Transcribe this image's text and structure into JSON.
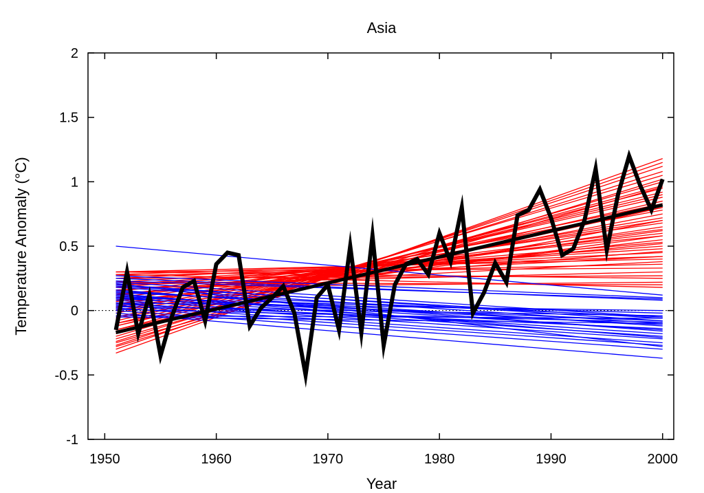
{
  "chart_data": {
    "type": "line",
    "title": "Asia",
    "xlabel": "Year",
    "ylabel": "Temperature Anomaly (°C)",
    "xlim": [
      1948.5,
      2001
    ],
    "ylim": [
      -1,
      2
    ],
    "xticks": [
      1950,
      1960,
      1970,
      1980,
      1990,
      2000
    ],
    "yticks": [
      -1,
      -0.5,
      0,
      0.5,
      1,
      1.5,
      2
    ],
    "ytick_labels": [
      "-1",
      "-0.5",
      "0",
      "0.5",
      "1",
      "1.5",
      "2"
    ],
    "zero_line": {
      "y": 0,
      "style": "dotted",
      "color": "#000000"
    },
    "grid": false,
    "legend": "none",
    "colors": {
      "warming_trends": "#ff0000",
      "cooling_trends": "#0000ff",
      "observed": "#000000"
    },
    "observed": {
      "x": [
        1951,
        1952,
        1953,
        1954,
        1955,
        1956,
        1957,
        1958,
        1959,
        1960,
        1961,
        1962,
        1963,
        1964,
        1965,
        1966,
        1967,
        1968,
        1969,
        1970,
        1971,
        1972,
        1973,
        1974,
        1975,
        1976,
        1977,
        1978,
        1979,
        1980,
        1981,
        1982,
        1983,
        1984,
        1985,
        1986,
        1987,
        1988,
        1989,
        1990,
        1991,
        1992,
        1993,
        1994,
        1995,
        1996,
        1997,
        1998,
        1999,
        2000
      ],
      "values": [
        -0.15,
        0.3,
        -0.18,
        0.12,
        -0.35,
        -0.05,
        0.18,
        0.23,
        -0.08,
        0.36,
        0.45,
        0.43,
        -0.12,
        0.02,
        0.1,
        0.19,
        -0.02,
        -0.5,
        0.1,
        0.2,
        -0.15,
        0.5,
        -0.17,
        0.58,
        -0.27,
        0.2,
        0.36,
        0.4,
        0.28,
        0.6,
        0.38,
        0.8,
        -0.02,
        0.14,
        0.37,
        0.22,
        0.74,
        0.78,
        0.94,
        0.72,
        0.43,
        0.48,
        0.7,
        1.1,
        0.47,
        0.9,
        1.2,
        0.97,
        0.78,
        1.02
      ]
    },
    "observed_trend": {
      "x": [
        1951,
        2000
      ],
      "values": [
        -0.17,
        0.82
      ]
    },
    "warming_trends": [
      [
        -0.33,
        1.18
      ],
      [
        -0.3,
        1.15
      ],
      [
        -0.27,
        1.12
      ],
      [
        -0.24,
        1.08
      ],
      [
        -0.2,
        1.05
      ],
      [
        -0.22,
        1.0
      ],
      [
        -0.18,
        0.97
      ],
      [
        -0.15,
        0.95
      ],
      [
        -0.12,
        0.92
      ],
      [
        -0.1,
        0.9
      ],
      [
        -0.08,
        0.88
      ],
      [
        -0.12,
        0.85
      ],
      [
        -0.05,
        0.83
      ],
      [
        -0.02,
        0.8
      ],
      [
        0.0,
        0.78
      ],
      [
        -0.06,
        0.75
      ],
      [
        0.03,
        0.72
      ],
      [
        0.05,
        0.7
      ],
      [
        0.08,
        0.68
      ],
      [
        0.02,
        0.65
      ],
      [
        0.1,
        0.63
      ],
      [
        0.12,
        0.6
      ],
      [
        0.15,
        0.58
      ],
      [
        0.07,
        0.55
      ],
      [
        0.18,
        0.53
      ],
      [
        0.2,
        0.5
      ],
      [
        0.22,
        0.48
      ],
      [
        0.13,
        0.46
      ],
      [
        0.25,
        0.45
      ],
      [
        0.28,
        0.42
      ],
      [
        0.3,
        0.4
      ],
      [
        0.16,
        0.38
      ],
      [
        0.27,
        0.36
      ],
      [
        0.3,
        0.33
      ],
      [
        0.2,
        0.3
      ],
      [
        0.25,
        0.27
      ],
      [
        0.3,
        0.25
      ],
      [
        0.18,
        0.22
      ],
      [
        0.22,
        0.2
      ],
      [
        0.28,
        0.18
      ],
      [
        -0.25,
        0.96
      ],
      [
        -0.1,
        0.7
      ],
      [
        0.05,
        0.62
      ],
      [
        0.12,
        0.52
      ],
      [
        -0.15,
        0.8
      ],
      [
        0.0,
        0.58
      ],
      [
        0.2,
        0.42
      ],
      [
        -0.28,
        1.02
      ]
    ],
    "cooling_trends": [
      [
        0.5,
        0.12
      ],
      [
        0.27,
        0.1
      ],
      [
        0.25,
        0.08
      ],
      [
        0.22,
        -0.05
      ],
      [
        0.2,
        -0.08
      ],
      [
        0.18,
        -0.1
      ],
      [
        0.15,
        -0.12
      ],
      [
        0.12,
        -0.15
      ],
      [
        0.1,
        -0.18
      ],
      [
        0.08,
        -0.2
      ],
      [
        0.06,
        -0.22
      ],
      [
        0.04,
        -0.25
      ],
      [
        0.02,
        -0.27
      ],
      [
        0.0,
        -0.3
      ],
      [
        -0.02,
        -0.37
      ],
      [
        0.14,
        -0.05
      ],
      [
        0.1,
        -0.02
      ],
      [
        0.06,
        0.0
      ],
      [
        0.03,
        -0.04
      ],
      [
        -0.05,
        -0.1
      ],
      [
        0.23,
        0.09
      ],
      [
        0.19,
        -0.06
      ],
      [
        0.16,
        -0.16
      ],
      [
        0.09,
        -0.08
      ],
      [
        0.05,
        -0.14
      ],
      [
        0.01,
        -0.09
      ],
      [
        -0.04,
        -0.06
      ],
      [
        0.13,
        -0.21
      ],
      [
        0.21,
        -0.28
      ],
      [
        0.11,
        -0.11
      ]
    ]
  }
}
